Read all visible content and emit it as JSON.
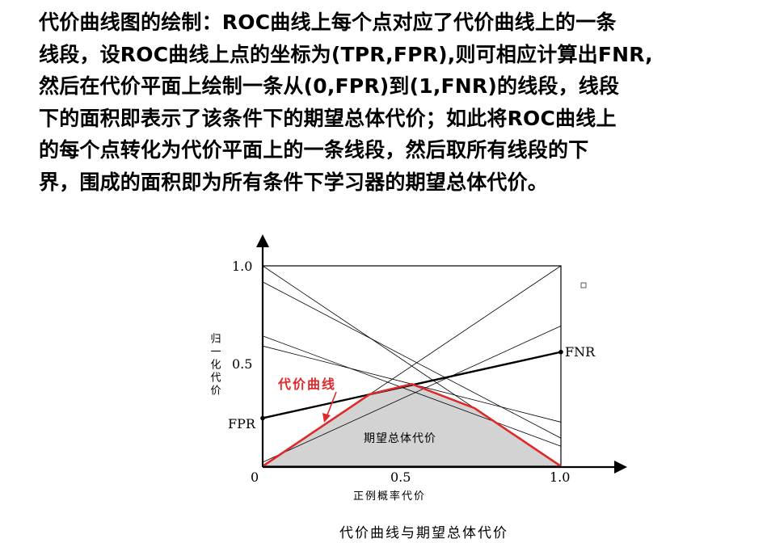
{
  "paragraph": {
    "lines": [
      "代价曲线图的绘制：ROC曲线上每个点对应了代价曲线上的一条",
      "线段，设ROC曲线上点的坐标为(TPR,FPR),则可相应计算出FNR,",
      "然后在代价平面上绘制一条从(0,FPR)到(1,FNR)的线段，线段",
      "下的面积即表示了该条件下的期望总体代价；如此将ROC曲线上",
      "的每个点转化为代价平面上的一条线段，然后取所有线段的下",
      "界，围成的面积即为所有条件下学习器的期望总体代价。"
    ]
  },
  "figure": {
    "caption": "代价曲线与期望总体代价",
    "y_axis_label": "归一化代价",
    "x_axis_label": "正例概率代价",
    "curve_label": "代价曲线",
    "area_label": "期望总体代价",
    "fpr_label": "FPR",
    "fnr_label": "FNR",
    "x_ticks": [
      "0",
      "0.5",
      "1.0"
    ],
    "y_ticks": [
      "1.0",
      "0.5"
    ],
    "colors": {
      "curve": "#e0282a",
      "area": "#d3d3d3",
      "axis": "#000000"
    }
  },
  "chart_data": {
    "type": "line",
    "xlim": [
      0,
      1
    ],
    "ylim": [
      0,
      1
    ],
    "xlabel": "正例概率代价",
    "ylabel": "归一化代价",
    "segments": [
      {
        "from": [
          0,
          0
        ],
        "to": [
          1,
          1
        ]
      },
      {
        "from": [
          0,
          1
        ],
        "to": [
          1,
          0
        ]
      },
      {
        "from": [
          0,
          0.92
        ],
        "to": [
          1,
          0.14
        ]
      },
      {
        "from": [
          0,
          0.65
        ],
        "to": [
          1,
          0.1
        ]
      },
      {
        "from": [
          0,
          0.6
        ],
        "to": [
          1,
          0.22
        ]
      },
      {
        "from": [
          0,
          0.02
        ],
        "to": [
          1,
          0.7
        ]
      },
      {
        "from": [
          0,
          0.24
        ],
        "to": [
          1,
          0.57
        ],
        "highlight": true
      }
    ],
    "lower_envelope": [
      [
        0,
        0
      ],
      [
        0.36,
        0.36
      ],
      [
        0.5,
        0.41
      ],
      [
        0.71,
        0.29
      ],
      [
        1,
        0
      ]
    ]
  }
}
